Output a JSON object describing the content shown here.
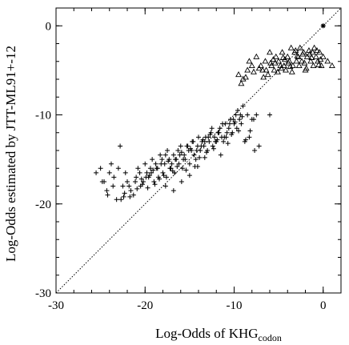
{
  "chart_data": {
    "type": "scatter",
    "xlabel": "Log-Odds of KHG",
    "xlabel_sub": "codon",
    "ylabel": "Log-Odds estimated by JTT-ML91+-12",
    "xlim": [
      -30,
      2
    ],
    "ylim": [
      -30,
      2
    ],
    "xticks": [
      -30,
      -20,
      -10,
      0
    ],
    "yticks": [
      -30,
      -20,
      -10,
      0
    ],
    "xtick_labels": [
      "-30",
      "-20",
      "-10",
      "0"
    ],
    "ytick_labels": [
      "-30",
      "-20",
      "-10",
      "0"
    ],
    "grid": false,
    "reference_line": "y = x",
    "series": [
      {
        "marker": "plus",
        "x": [
          -25.5,
          -25.0,
          -24.6,
          -24.2,
          -24.0,
          -23.8,
          -23.5,
          -23.2,
          -23.0,
          -22.8,
          -22.5,
          -22.2,
          -22.0,
          -21.6,
          -21.3,
          -21.0,
          -20.8,
          -20.5,
          -20.2,
          -20.0,
          -19.8,
          -19.6,
          -19.4,
          -19.2,
          -19.0,
          -18.8,
          -18.6,
          -18.5,
          -18.3,
          -18.1,
          -18.0,
          -17.8,
          -17.6,
          -17.5,
          -17.3,
          -17.2,
          -17.0,
          -16.8,
          -16.7,
          -16.5,
          -16.3,
          -16.2,
          -16.0,
          -15.8,
          -15.6,
          -15.5,
          -15.3,
          -15.1,
          -15.0,
          -14.8,
          -14.6,
          -14.5,
          -14.3,
          -14.1,
          -14.0,
          -13.8,
          -13.6,
          -13.4,
          -13.2,
          -13.0,
          -12.8,
          -12.6,
          -12.4,
          -12.2,
          -12.0,
          -11.8,
          -11.6,
          -11.4,
          -11.2,
          -11.0,
          -10.8,
          -10.6,
          -10.4,
          -10.2,
          -10.0,
          -9.8,
          -9.6,
          -9.4,
          -9.2,
          -9.0,
          -8.5,
          -8.0,
          -7.5,
          -6.0,
          -24.8,
          -24.3,
          -23.6,
          -22.7,
          -21.8,
          -21.1,
          -20.6,
          -19.9,
          -19.3,
          -18.7,
          -18.2,
          -17.7,
          -17.1,
          -16.6,
          -16.1,
          -15.7,
          -15.2,
          -14.7,
          -14.2,
          -13.7,
          -13.3,
          -12.9,
          -12.5,
          -12.1,
          -11.7,
          -11.3,
          -10.9,
          -10.5,
          -10.1,
          -9.7,
          -9.3,
          -8.8,
          -8.3,
          -7.8,
          -22.3,
          -21.7,
          -20.9,
          -20.3,
          -19.7,
          -19.1,
          -18.4,
          -17.9,
          -17.4,
          -16.9,
          -16.4,
          -15.9,
          -15.4,
          -14.9,
          -14.4,
          -13.9,
          -13.5,
          -13.1,
          -12.7,
          -12.3,
          -11.9,
          -11.5,
          -11.1,
          -10.7,
          -10.3,
          -9.9,
          -9.5,
          -9.1,
          -8.7,
          -8.2,
          -7.7,
          -7.2,
          -22.4,
          -20.4,
          -19.5,
          -18.9,
          -17.7,
          -16.8,
          -15.9,
          -15.0,
          -14.1,
          -13.3
        ],
        "y": [
          -16.5,
          -16.0,
          -17.5,
          -19.0,
          -16.5,
          -15.5,
          -17.0,
          -19.5,
          -16.0,
          -13.5,
          -18.0,
          -16.5,
          -17.5,
          -18.5,
          -19.0,
          -17.0,
          -16.0,
          -18.0,
          -17.5,
          -15.5,
          -16.5,
          -17.0,
          -16.0,
          -15.0,
          -17.5,
          -15.5,
          -16.0,
          -17.0,
          -14.5,
          -15.0,
          -16.5,
          -15.5,
          -17.0,
          -14.0,
          -15.0,
          -16.0,
          -15.5,
          -14.5,
          -16.5,
          -15.0,
          -14.0,
          -15.5,
          -13.5,
          -16.0,
          -14.5,
          -15.0,
          -13.5,
          -14.0,
          -15.5,
          -14.0,
          -13.0,
          -14.5,
          -15.0,
          -13.5,
          -12.5,
          -14.0,
          -13.0,
          -13.5,
          -12.5,
          -14.0,
          -13.0,
          -12.0,
          -13.5,
          -12.5,
          -13.0,
          -12.0,
          -11.5,
          -12.5,
          -13.0,
          -11.0,
          -12.0,
          -11.5,
          -10.5,
          -12.0,
          -11.0,
          -10.0,
          -9.5,
          -10.5,
          -11.0,
          -9.0,
          -10.0,
          -10.5,
          -10.0,
          -10.0,
          -17.5,
          -18.5,
          -18.0,
          -19.5,
          -18.0,
          -17.5,
          -16.5,
          -17.0,
          -16.5,
          -16.0,
          -15.5,
          -14.5,
          -16.0,
          -15.0,
          -14.5,
          -15.0,
          -13.5,
          -13.0,
          -14.0,
          -13.5,
          -13.0,
          -12.5,
          -11.5,
          -13.0,
          -12.0,
          -11.0,
          -12.5,
          -11.0,
          -10.5,
          -11.5,
          -10.0,
          -13.0,
          -12.5,
          -10.5,
          -18.8,
          -19.2,
          -18.3,
          -17.8,
          -18.2,
          -16.2,
          -17.2,
          -16.8,
          -15.2,
          -16.3,
          -15.8,
          -14.2,
          -16.2,
          -13.8,
          -15.8,
          -14.8,
          -12.8,
          -14.2,
          -12.2,
          -13.8,
          -12.8,
          -14.5,
          -12.5,
          -13.2,
          -12.2,
          -10.8,
          -11.8,
          -10.2,
          -12.8,
          -11.8,
          -14.0,
          -13.5,
          -19.2,
          -17.2,
          -16.8,
          -17.8,
          -18.0,
          -18.5,
          -17.5,
          -16.8,
          -15.8,
          -14.8
        ]
      },
      {
        "marker": "triangle",
        "x": [
          -9.5,
          -9.0,
          -8.5,
          -8.0,
          -7.5,
          -7.0,
          -6.8,
          -6.5,
          -6.2,
          -6.0,
          -5.8,
          -5.5,
          -5.3,
          -5.0,
          -4.8,
          -4.6,
          -4.4,
          -4.2,
          -4.0,
          -3.8,
          -3.6,
          -3.4,
          -3.2,
          -3.0,
          -2.8,
          -2.6,
          -2.4,
          -2.2,
          -2.0,
          -1.8,
          -1.6,
          -1.4,
          -1.2,
          -1.0,
          -0.8,
          -0.6,
          -0.4,
          -0.2,
          0.0,
          0.5,
          1.0,
          -9.2,
          -8.7,
          -7.8,
          -7.2,
          -6.7,
          -5.9,
          -5.6,
          -5.1,
          -4.7,
          -4.3,
          -3.9,
          -3.5,
          -3.1,
          -2.7,
          -2.3,
          -1.9,
          -1.5,
          -1.1,
          -0.7,
          -0.3,
          -8.3,
          -6.4,
          -5.4,
          -4.5,
          -3.7,
          -2.9,
          -2.1,
          -1.3,
          -0.5
        ],
        "y": [
          -5.5,
          -6.0,
          -5.0,
          -4.5,
          -3.5,
          -4.5,
          -5.0,
          -4.0,
          -5.5,
          -3.0,
          -4.5,
          -5.0,
          -3.5,
          -4.0,
          -4.5,
          -3.0,
          -4.5,
          -5.0,
          -3.5,
          -4.0,
          -2.5,
          -4.5,
          -3.0,
          -4.0,
          -3.5,
          -2.5,
          -4.0,
          -3.0,
          -5.0,
          -3.5,
          -2.8,
          -4.0,
          -3.0,
          -2.5,
          -3.5,
          -4.0,
          -3.0,
          -4.5,
          -3.5,
          -4.0,
          -4.5,
          -6.5,
          -5.8,
          -5.2,
          -4.8,
          -5.8,
          -4.2,
          -3.8,
          -5.2,
          -4.8,
          -3.8,
          -4.2,
          -5.2,
          -2.8,
          -4.5,
          -3.2,
          -4.8,
          -3.2,
          -4.5,
          -2.8,
          -3.8,
          -4.0,
          -5.0,
          -4.2,
          -3.6,
          -4.6,
          -3.4,
          -4.2,
          -3.6,
          -4.4
        ]
      },
      {
        "marker": "star",
        "x": [
          0.0
        ],
        "y": [
          0.0
        ]
      }
    ]
  }
}
